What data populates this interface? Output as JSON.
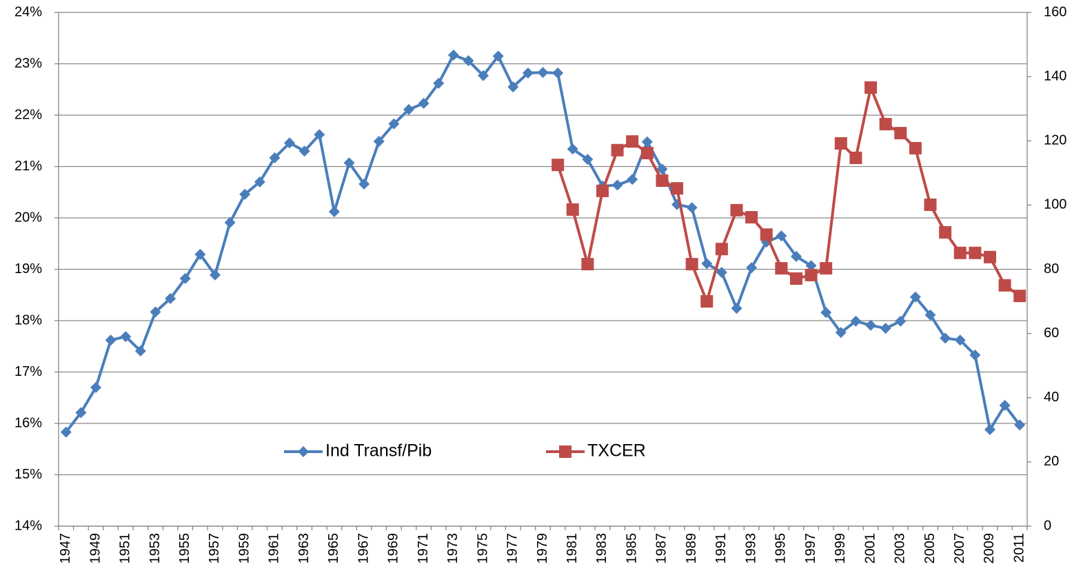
{
  "chart_data": {
    "type": "line",
    "categories": [
      "1947",
      null,
      "1949",
      null,
      "1951",
      null,
      "1953",
      null,
      "1955",
      null,
      "1957",
      null,
      "1959",
      null,
      "1961",
      null,
      "1963",
      null,
      "1965",
      null,
      "1967",
      null,
      "1969",
      null,
      "1971",
      null,
      "1973",
      null,
      "1975",
      null,
      "1977",
      null,
      "1979",
      null,
      "1981",
      null,
      "1983",
      null,
      "1985",
      null,
      "1987",
      null,
      "1989",
      null,
      "1991",
      null,
      "1993",
      null,
      "1995",
      null,
      "1997",
      null,
      "1999",
      null,
      "2001",
      null,
      "2003",
      null,
      "2005",
      null,
      "2007",
      null,
      "2009",
      null,
      "2011"
    ],
    "series": [
      {
        "name": "Ind Transf/Pib",
        "color": "#4a7ebb",
        "marker": "diamond",
        "axis": "y",
        "values": [
          15.83,
          16.21,
          16.7,
          17.62,
          17.69,
          17.41,
          18.17,
          18.43,
          18.82,
          19.29,
          18.89,
          19.91,
          20.46,
          20.7,
          21.17,
          21.46,
          21.3,
          21.62,
          20.12,
          21.07,
          20.66,
          21.49,
          21.83,
          22.11,
          22.23,
          22.62,
          23.17,
          23.06,
          22.77,
          23.15,
          22.55,
          22.82,
          22.83,
          22.82,
          21.34,
          21.14,
          20.62,
          20.64,
          20.75,
          21.48,
          20.95,
          20.26,
          20.2,
          19.11,
          18.94,
          18.24,
          19.03,
          19.53,
          19.65,
          19.25,
          19.07,
          18.16,
          17.77,
          17.99,
          17.91,
          17.85,
          17.99,
          18.46,
          18.11,
          17.66,
          17.62,
          17.33,
          15.88,
          16.35,
          15.97
        ]
      },
      {
        "name": "TXCER",
        "color": "#be4b48",
        "marker": "square",
        "axis": "y2",
        "values": [
          null,
          null,
          null,
          null,
          null,
          null,
          null,
          null,
          null,
          null,
          null,
          null,
          null,
          null,
          null,
          null,
          null,
          null,
          null,
          null,
          null,
          null,
          null,
          null,
          null,
          null,
          null,
          null,
          null,
          null,
          null,
          null,
          null,
          112.5,
          98.6,
          81.6,
          104.4,
          117.1,
          119.8,
          116.2,
          107.6,
          105.2,
          81.6,
          70.0,
          86.3,
          98.4,
          96.2,
          90.8,
          80.3,
          77.1,
          78.2,
          80.3,
          119.2,
          114.7,
          136.6,
          125.2,
          122.4,
          117.7,
          100.1,
          91.5,
          85.1,
          85.1,
          83.8,
          75.0,
          71.7
        ]
      }
    ],
    "ylim": [
      14,
      24
    ],
    "yticks": [
      {
        "value": 14,
        "label": "14%"
      },
      {
        "value": 15,
        "label": "15%"
      },
      {
        "value": 16,
        "label": "16%"
      },
      {
        "value": 17,
        "label": "17%"
      },
      {
        "value": 18,
        "label": "18%"
      },
      {
        "value": 19,
        "label": "19%"
      },
      {
        "value": 20,
        "label": "20%"
      },
      {
        "value": 21,
        "label": "21%"
      },
      {
        "value": 22,
        "label": "22%"
      },
      {
        "value": 23,
        "label": "23%"
      },
      {
        "value": 24,
        "label": "24%"
      }
    ],
    "y2lim": [
      0,
      160
    ],
    "y2ticks": [
      0,
      20,
      40,
      60,
      80,
      100,
      120,
      140,
      160
    ],
    "grid": true,
    "legend": "lower center"
  }
}
